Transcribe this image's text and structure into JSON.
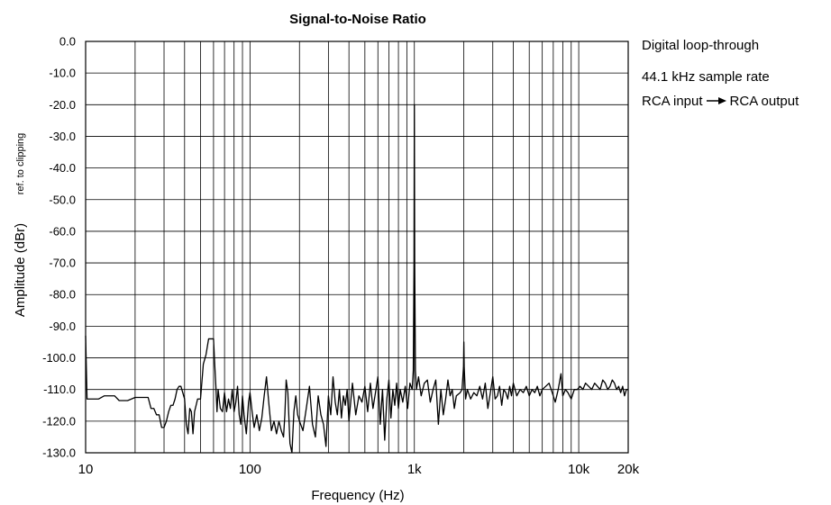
{
  "chart_data": {
    "type": "line",
    "title": "Signal-to-Noise Ratio",
    "xlabel": "Frequency (Hz)",
    "ylabel": "Amplitude (dBr)",
    "ylabel_sub": "ref. to clipping",
    "xscale": "log",
    "xlim": [
      10,
      20000
    ],
    "ylim": [
      -130,
      0
    ],
    "grid": true,
    "x_ticks": [
      {
        "value": 10,
        "label": "10"
      },
      {
        "value": 100,
        "label": "100"
      },
      {
        "value": 1000,
        "label": "1k"
      },
      {
        "value": 10000,
        "label": "10k"
      },
      {
        "value": 20000,
        "label": "20k"
      }
    ],
    "y_ticks": [
      {
        "value": 0,
        "label": "0.0"
      },
      {
        "value": -10,
        "label": "-10.0"
      },
      {
        "value": -20,
        "label": "-20.0"
      },
      {
        "value": -30,
        "label": "-30.0"
      },
      {
        "value": -40,
        "label": "-40.0"
      },
      {
        "value": -50,
        "label": "-50.0"
      },
      {
        "value": -60,
        "label": "-60.0"
      },
      {
        "value": -70,
        "label": "-70.0"
      },
      {
        "value": -80,
        "label": "-80.0"
      },
      {
        "value": -90,
        "label": "-90.0"
      },
      {
        "value": -100,
        "label": "-100.0"
      },
      {
        "value": -110,
        "label": "-110.0"
      },
      {
        "value": -120,
        "label": "-120.0"
      },
      {
        "value": -130,
        "label": "-130.0"
      }
    ],
    "annotations": [
      "Digital loop-through",
      "44.1 kHz sample rate",
      "RCA input",
      "RCA output"
    ],
    "series": [
      {
        "color": "#000000",
        "points": [
          [
            10,
            -93
          ],
          [
            10.2,
            -113
          ],
          [
            11,
            -113
          ],
          [
            12,
            -113
          ],
          [
            13,
            -112
          ],
          [
            14,
            -112
          ],
          [
            15,
            -112
          ],
          [
            16,
            -113.5
          ],
          [
            17,
            -113.5
          ],
          [
            18,
            -113.5
          ],
          [
            19,
            -113
          ],
          [
            20,
            -112.5
          ],
          [
            22,
            -112.5
          ],
          [
            24,
            -112.5
          ],
          [
            25,
            -116
          ],
          [
            26,
            -116
          ],
          [
            27,
            -118
          ],
          [
            28,
            -118
          ],
          [
            29,
            -122
          ],
          [
            30,
            -122
          ],
          [
            31,
            -120
          ],
          [
            32,
            -117
          ],
          [
            33,
            -115
          ],
          [
            34,
            -115
          ],
          [
            35,
            -113
          ],
          [
            36,
            -110
          ],
          [
            37,
            -109
          ],
          [
            38,
            -109
          ],
          [
            39,
            -111
          ],
          [
            40,
            -113
          ],
          [
            41,
            -121
          ],
          [
            42,
            -124
          ],
          [
            43,
            -116
          ],
          [
            44,
            -117
          ],
          [
            45,
            -124
          ],
          [
            46,
            -117
          ],
          [
            47,
            -115
          ],
          [
            48,
            -113
          ],
          [
            50,
            -113
          ],
          [
            52,
            -102
          ],
          [
            54,
            -99
          ],
          [
            56,
            -94
          ],
          [
            58,
            -94
          ],
          [
            60,
            -94
          ],
          [
            61,
            -102
          ],
          [
            62,
            -109
          ],
          [
            63,
            -117
          ],
          [
            64,
            -110
          ],
          [
            66,
            -116
          ],
          [
            68,
            -117
          ],
          [
            70,
            -111
          ],
          [
            72,
            -117
          ],
          [
            74,
            -113
          ],
          [
            76,
            -116
          ],
          [
            78,
            -110
          ],
          [
            80,
            -117
          ],
          [
            82,
            -114
          ],
          [
            84,
            -109
          ],
          [
            86,
            -118
          ],
          [
            88,
            -121
          ],
          [
            90,
            -112
          ],
          [
            92,
            -118
          ],
          [
            95,
            -124
          ],
          [
            98,
            -114
          ],
          [
            100,
            -111
          ],
          [
            103,
            -117
          ],
          [
            106,
            -122
          ],
          [
            110,
            -118
          ],
          [
            114,
            -123
          ],
          [
            118,
            -119
          ],
          [
            122,
            -112
          ],
          [
            126,
            -106
          ],
          [
            130,
            -114
          ],
          [
            135,
            -123
          ],
          [
            140,
            -120
          ],
          [
            145,
            -124
          ],
          [
            150,
            -120
          ],
          [
            155,
            -123
          ],
          [
            160,
            -125
          ],
          [
            163,
            -118
          ],
          [
            166,
            -107
          ],
          [
            170,
            -111
          ],
          [
            175,
            -127
          ],
          [
            180,
            -130
          ],
          [
            185,
            -117
          ],
          [
            190,
            -112
          ],
          [
            195,
            -118
          ],
          [
            200,
            -120
          ],
          [
            210,
            -123
          ],
          [
            220,
            -116
          ],
          [
            230,
            -109
          ],
          [
            240,
            -121
          ],
          [
            250,
            -125
          ],
          [
            260,
            -112
          ],
          [
            270,
            -118
          ],
          [
            280,
            -121
          ],
          [
            290,
            -128
          ],
          [
            300,
            -112
          ],
          [
            310,
            -118
          ],
          [
            320,
            -106
          ],
          [
            330,
            -114
          ],
          [
            340,
            -118
          ],
          [
            350,
            -110
          ],
          [
            360,
            -119
          ],
          [
            370,
            -112
          ],
          [
            380,
            -115
          ],
          [
            390,
            -110
          ],
          [
            400,
            -120
          ],
          [
            420,
            -108
          ],
          [
            440,
            -118
          ],
          [
            460,
            -112
          ],
          [
            480,
            -114
          ],
          [
            500,
            -109
          ],
          [
            520,
            -117
          ],
          [
            540,
            -108
          ],
          [
            560,
            -116
          ],
          [
            580,
            -111
          ],
          [
            600,
            -106
          ],
          [
            620,
            -121
          ],
          [
            640,
            -110
          ],
          [
            660,
            -126
          ],
          [
            680,
            -113
          ],
          [
            700,
            -107
          ],
          [
            720,
            -119
          ],
          [
            740,
            -110
          ],
          [
            760,
            -115
          ],
          [
            780,
            -108
          ],
          [
            800,
            -116
          ],
          [
            820,
            -110
          ],
          [
            850,
            -114
          ],
          [
            880,
            -109
          ],
          [
            910,
            -116
          ],
          [
            940,
            -108
          ],
          [
            970,
            -110
          ],
          [
            985,
            -104
          ],
          [
            995,
            -70
          ],
          [
            1000,
            -20
          ],
          [
            1005,
            -70
          ],
          [
            1015,
            -104
          ],
          [
            1030,
            -110
          ],
          [
            1060,
            -106
          ],
          [
            1100,
            -112
          ],
          [
            1150,
            -108
          ],
          [
            1200,
            -107
          ],
          [
            1250,
            -114
          ],
          [
            1300,
            -110
          ],
          [
            1350,
            -107
          ],
          [
            1400,
            -121
          ],
          [
            1450,
            -110
          ],
          [
            1500,
            -118
          ],
          [
            1550,
            -113
          ],
          [
            1600,
            -107
          ],
          [
            1650,
            -112
          ],
          [
            1700,
            -110
          ],
          [
            1750,
            -116
          ],
          [
            1800,
            -112
          ],
          [
            1900,
            -111
          ],
          [
            1950,
            -110
          ],
          [
            1990,
            -103
          ],
          [
            2000,
            -95
          ],
          [
            2010,
            -103
          ],
          [
            2050,
            -113
          ],
          [
            2100,
            -110
          ],
          [
            2200,
            -113
          ],
          [
            2300,
            -111
          ],
          [
            2400,
            -112
          ],
          [
            2500,
            -109
          ],
          [
            2600,
            -113
          ],
          [
            2700,
            -108
          ],
          [
            2800,
            -116
          ],
          [
            2900,
            -111
          ],
          [
            3000,
            -106
          ],
          [
            3100,
            -113
          ],
          [
            3200,
            -112
          ],
          [
            3300,
            -109
          ],
          [
            3400,
            -115
          ],
          [
            3500,
            -110
          ],
          [
            3600,
            -111
          ],
          [
            3700,
            -113
          ],
          [
            3800,
            -109
          ],
          [
            3900,
            -112
          ],
          [
            4000,
            -108
          ],
          [
            4200,
            -112
          ],
          [
            4400,
            -110
          ],
          [
            4600,
            -111
          ],
          [
            4800,
            -109
          ],
          [
            5000,
            -112
          ],
          [
            5200,
            -110
          ],
          [
            5400,
            -111
          ],
          [
            5600,
            -109
          ],
          [
            5800,
            -112
          ],
          [
            6000,
            -110
          ],
          [
            6300,
            -109
          ],
          [
            6600,
            -108
          ],
          [
            6900,
            -111
          ],
          [
            7200,
            -114
          ],
          [
            7500,
            -110
          ],
          [
            7800,
            -105
          ],
          [
            8000,
            -112
          ],
          [
            8300,
            -110
          ],
          [
            8600,
            -111
          ],
          [
            9000,
            -113
          ],
          [
            9400,
            -110
          ],
          [
            9800,
            -110
          ],
          [
            10200,
            -109
          ],
          [
            10600,
            -110
          ],
          [
            11000,
            -108
          ],
          [
            11500,
            -109
          ],
          [
            12000,
            -110
          ],
          [
            12500,
            -108
          ],
          [
            13000,
            -109
          ],
          [
            13500,
            -110
          ],
          [
            14000,
            -107
          ],
          [
            14500,
            -108
          ],
          [
            15000,
            -110
          ],
          [
            15500,
            -109
          ],
          [
            16000,
            -107
          ],
          [
            16500,
            -108
          ],
          [
            17000,
            -110
          ],
          [
            17500,
            -109
          ],
          [
            18000,
            -111
          ],
          [
            18500,
            -109
          ],
          [
            19000,
            -112
          ],
          [
            19500,
            -110
          ],
          [
            20000,
            -110
          ]
        ]
      }
    ]
  }
}
